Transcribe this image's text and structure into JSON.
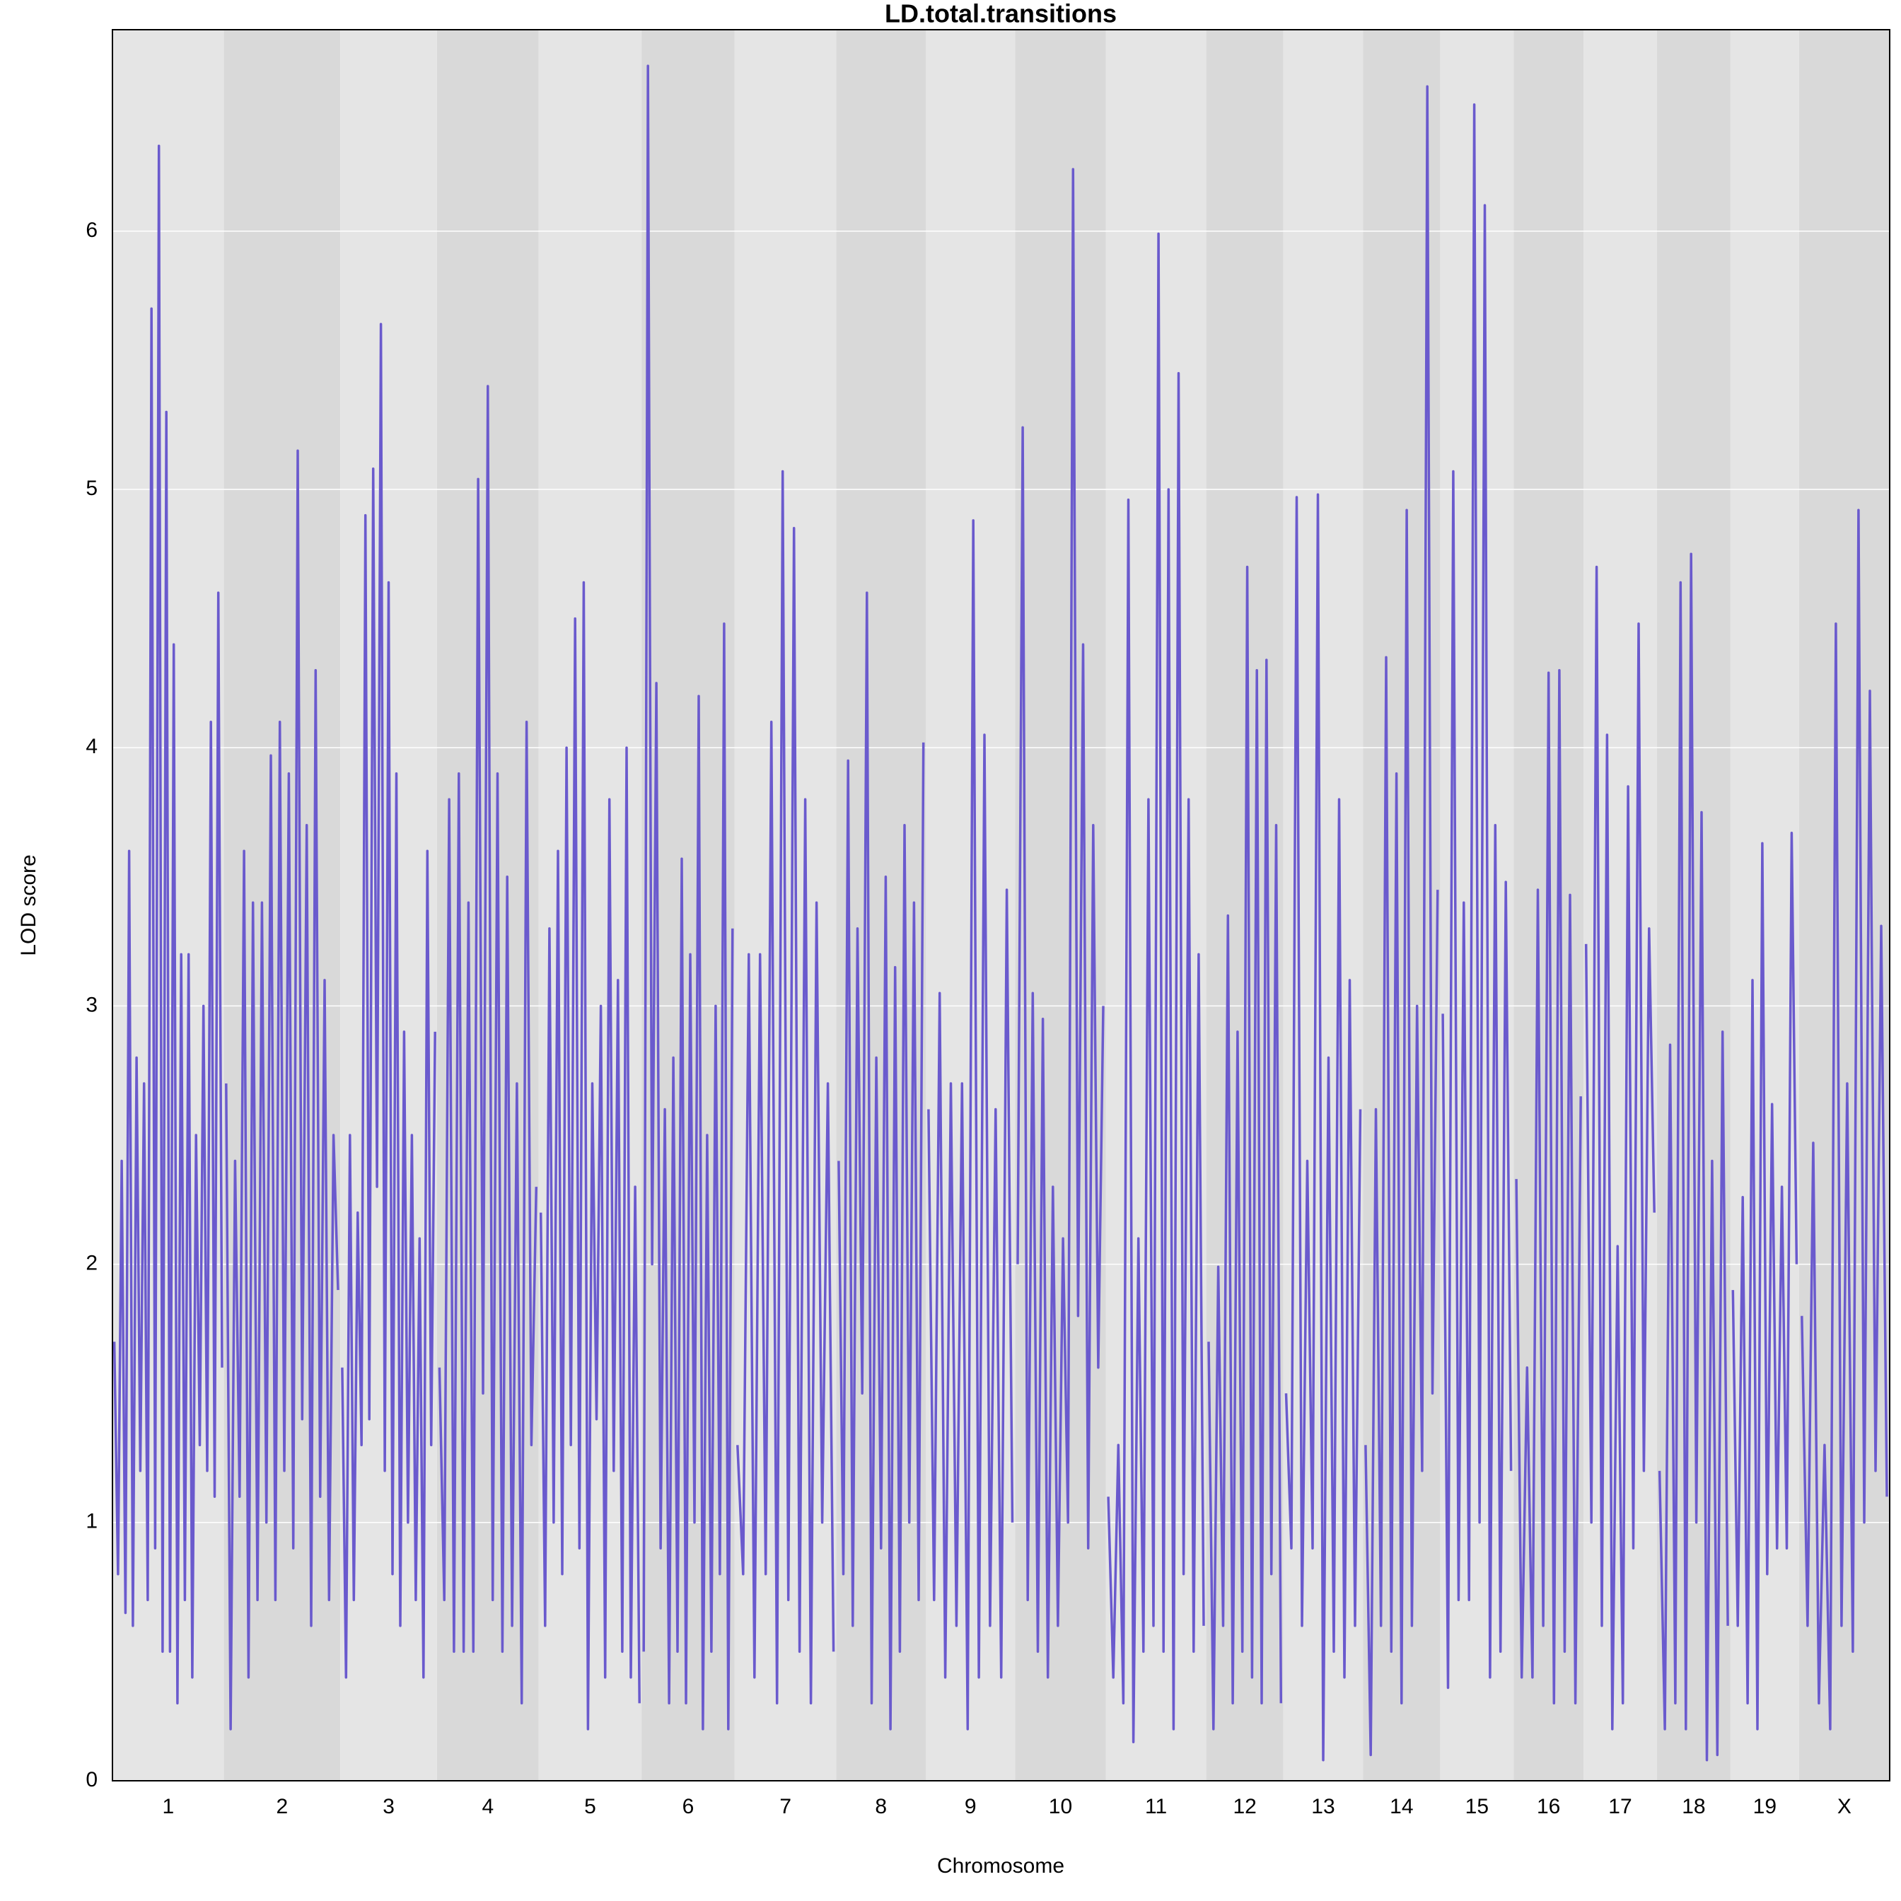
{
  "chart_data": {
    "type": "line",
    "title": "LD.total.transitions",
    "x_label": "Chromosome",
    "y_label": "LOD score",
    "color": "#6a5acd",
    "band_colors": [
      "#e5e5e5",
      "#d9d9d9"
    ],
    "grid": true,
    "ylim": [
      0,
      6.78
    ],
    "yticks": [
      0,
      1,
      2,
      3,
      4,
      5,
      6
    ],
    "chromosomes": [
      {
        "label": "1",
        "length": 91,
        "values": [
          1.7,
          0.8,
          2.4,
          0.65,
          3.6,
          0.6,
          2.8,
          1.2,
          2.7,
          0.7,
          5.7,
          0.9,
          6.33,
          0.5,
          5.3,
          0.5,
          4.4,
          0.3,
          3.2,
          0.7,
          3.2,
          0.4,
          2.5,
          1.3,
          3.0,
          1.2,
          4.1,
          1.1,
          4.6,
          1.6
        ]
      },
      {
        "label": "2",
        "length": 95,
        "values": [
          2.7,
          0.2,
          2.4,
          1.1,
          3.6,
          0.4,
          3.4,
          0.7,
          3.4,
          1.0,
          3.97,
          0.7,
          4.1,
          1.2,
          3.9,
          0.9,
          5.15,
          1.4,
          3.7,
          0.6,
          4.3,
          1.1,
          3.1,
          0.7,
          2.5,
          1.9
        ]
      },
      {
        "label": "3",
        "length": 79,
        "values": [
          1.6,
          0.4,
          2.5,
          0.7,
          2.2,
          1.3,
          4.9,
          1.4,
          5.08,
          2.3,
          5.64,
          1.2,
          4.64,
          0.8,
          3.9,
          0.6,
          2.9,
          1.0,
          2.5,
          0.7,
          2.1,
          0.4,
          3.6,
          1.3,
          2.9
        ]
      },
      {
        "label": "4",
        "length": 83,
        "values": [
          1.6,
          0.7,
          3.8,
          0.5,
          3.9,
          0.5,
          3.4,
          0.5,
          5.04,
          1.5,
          5.4,
          0.7,
          3.9,
          0.5,
          3.5,
          0.6,
          2.7,
          0.3,
          4.1,
          1.3,
          2.3
        ]
      },
      {
        "label": "5",
        "length": 84,
        "values": [
          2.2,
          0.6,
          3.3,
          1.0,
          3.6,
          0.8,
          4.0,
          1.3,
          4.5,
          0.9,
          4.64,
          0.2,
          2.7,
          1.4,
          3.0,
          0.4,
          3.8,
          1.2,
          3.1,
          0.5,
          4.0,
          0.4,
          2.3,
          0.3
        ]
      },
      {
        "label": "6",
        "length": 76,
        "values": [
          0.5,
          6.64,
          2.0,
          4.25,
          0.9,
          2.6,
          0.3,
          2.8,
          0.5,
          3.57,
          0.3,
          3.2,
          1.0,
          4.2,
          0.2,
          2.5,
          0.5,
          3.0,
          0.8,
          4.48,
          0.2,
          3.3
        ]
      },
      {
        "label": "7",
        "length": 83,
        "values": [
          1.3,
          0.8,
          3.2,
          0.4,
          3.2,
          0.8,
          4.1,
          0.3,
          5.07,
          0.7,
          4.85,
          0.5,
          3.8,
          0.3,
          3.4,
          1.0,
          2.7,
          0.5
        ]
      },
      {
        "label": "8",
        "length": 73,
        "values": [
          2.4,
          0.8,
          3.95,
          0.6,
          3.3,
          1.5,
          4.6,
          0.3,
          2.8,
          0.9,
          3.5,
          0.2,
          3.15,
          0.5,
          3.7,
          1.0,
          3.4,
          0.7,
          4.02
        ]
      },
      {
        "label": "9",
        "length": 73,
        "values": [
          2.6,
          0.7,
          3.05,
          0.4,
          2.7,
          0.6,
          2.7,
          0.2,
          4.88,
          0.4,
          4.05,
          0.6,
          2.6,
          0.4,
          3.45,
          1.0
        ]
      },
      {
        "label": "10",
        "length": 74,
        "values": [
          2.0,
          5.24,
          0.7,
          3.05,
          0.5,
          2.95,
          0.4,
          2.3,
          0.6,
          2.1,
          1.0,
          6.24,
          1.8,
          4.4,
          0.9,
          3.7,
          1.6,
          3.0
        ]
      },
      {
        "label": "11",
        "length": 82,
        "values": [
          1.1,
          0.4,
          1.3,
          0.3,
          4.96,
          0.15,
          2.1,
          0.5,
          3.8,
          0.6,
          5.99,
          0.5,
          5.0,
          0.2,
          5.45,
          0.8,
          3.8,
          0.5,
          3.2,
          0.6
        ]
      },
      {
        "label": "12",
        "length": 63,
        "values": [
          1.7,
          0.2,
          1.99,
          0.6,
          3.35,
          0.3,
          2.9,
          0.5,
          4.7,
          0.4,
          4.3,
          0.3,
          4.34,
          0.8,
          3.7,
          0.3
        ]
      },
      {
        "label": "13",
        "length": 65,
        "values": [
          1.5,
          0.9,
          4.97,
          0.6,
          2.4,
          0.9,
          4.98,
          0.08,
          2.8,
          0.5,
          3.8,
          0.4,
          3.1,
          0.6,
          2.6
        ]
      },
      {
        "label": "14",
        "length": 63,
        "values": [
          1.3,
          0.1,
          2.6,
          0.6,
          4.35,
          0.5,
          3.9,
          0.3,
          4.92,
          0.6,
          3.0,
          1.2,
          6.56,
          1.5,
          3.45
        ]
      },
      {
        "label": "15",
        "length": 60,
        "values": [
          2.97,
          0.36,
          5.07,
          0.7,
          3.4,
          0.7,
          6.49,
          1.0,
          6.1,
          0.4,
          3.7,
          0.5,
          3.48,
          1.2
        ]
      },
      {
        "label": "16",
        "length": 57,
        "values": [
          2.33,
          0.4,
          1.6,
          0.4,
          3.45,
          0.6,
          4.29,
          0.3,
          4.3,
          0.5,
          3.43,
          0.3,
          2.65
        ]
      },
      {
        "label": "17",
        "length": 60,
        "values": [
          3.24,
          1.0,
          4.7,
          0.6,
          4.05,
          0.2,
          2.07,
          0.3,
          3.85,
          0.9,
          4.48,
          1.2,
          3.3,
          2.2
        ]
      },
      {
        "label": "18",
        "length": 60,
        "values": [
          1.2,
          0.2,
          2.85,
          0.3,
          4.64,
          0.2,
          4.75,
          1.0,
          3.75,
          0.08,
          2.4,
          0.1,
          2.9,
          0.6
        ]
      },
      {
        "label": "19",
        "length": 56,
        "values": [
          1.9,
          0.6,
          2.26,
          0.3,
          3.1,
          0.2,
          3.63,
          0.8,
          2.62,
          0.9,
          2.3,
          0.9,
          3.67,
          2.0
        ]
      },
      {
        "label": "X",
        "length": 74,
        "values": [
          1.8,
          0.6,
          2.47,
          0.3,
          1.3,
          0.2,
          4.48,
          0.6,
          2.7,
          0.5,
          4.92,
          1.0,
          4.22,
          1.2,
          3.31,
          1.1
        ]
      }
    ]
  }
}
